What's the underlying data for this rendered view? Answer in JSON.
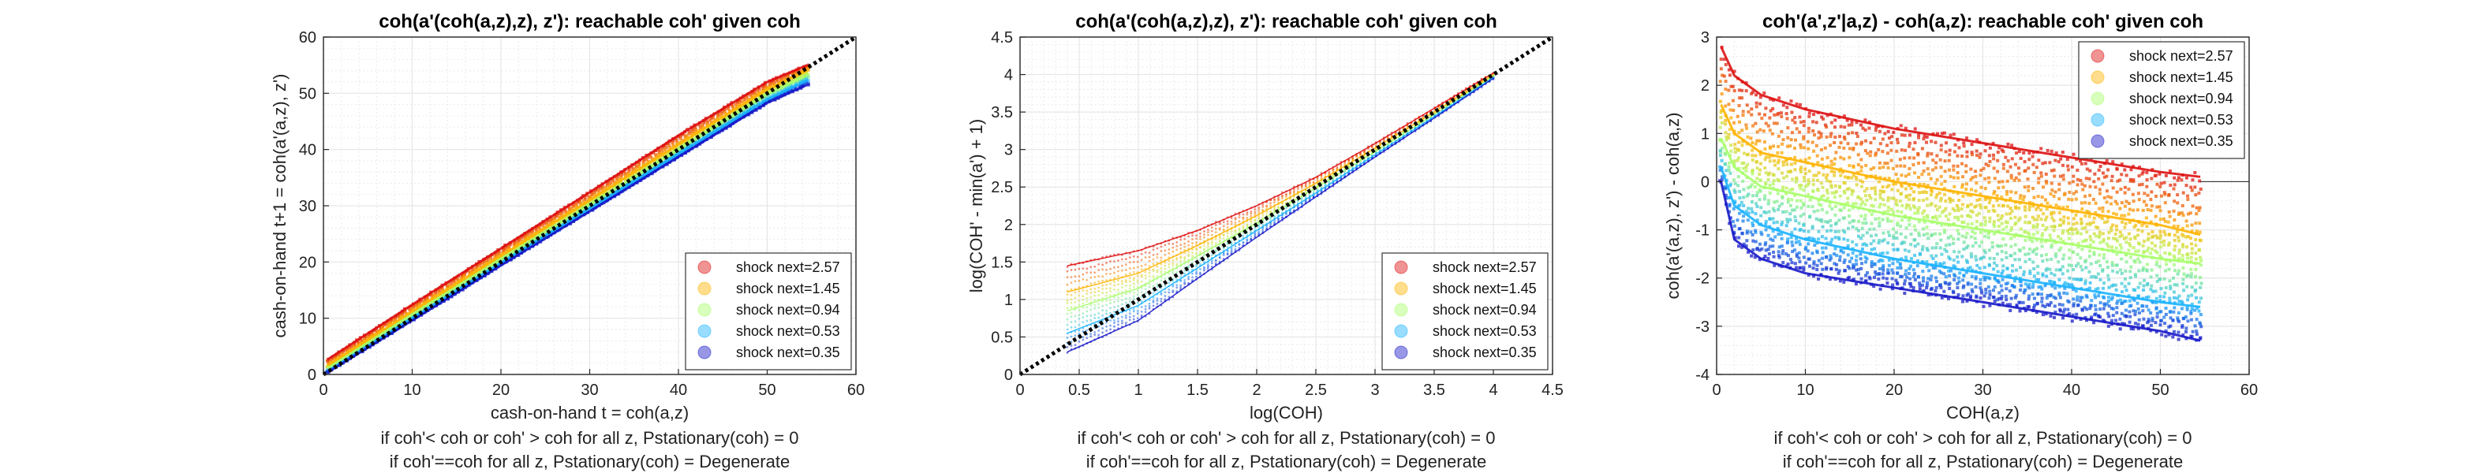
{
  "figure": {
    "caption_line1": "if coh'< coh or coh' > coh for all z, Pstationary(coh) = 0",
    "caption_line2": "if coh'==coh for all z, Pstationary(coh) = Degenerate"
  },
  "colors": {
    "shock_2_57": "#dd1010",
    "shock_1_45": "#ffb400",
    "shock_0_94": "#a8ff6a",
    "shock_0_53": "#1ab3ff",
    "shock_0_35": "#1818c8",
    "grid": "#e6e6e6",
    "axis": "#262626",
    "reference_line": "#000000"
  },
  "chart_data": [
    {
      "type": "scatter",
      "title": "coh(a'(coh(a,z),z), z'): reachable coh' given coh",
      "xlabel": "cash-on-hand t = coh(a,z)",
      "ylabel": "cash-on-hand t+1 = coh(a'(a,z), z')",
      "xlim": [
        0,
        60
      ],
      "ylim": [
        0,
        60
      ],
      "xticks": [
        "0",
        "10",
        "20",
        "30",
        "40",
        "50",
        "60"
      ],
      "yticks": [
        "0",
        "10",
        "20",
        "30",
        "40",
        "50",
        "60"
      ],
      "grid": true,
      "minor_grid": true,
      "legend_position": "bottom-right",
      "reference_line": "45-degree dotted black line y = x",
      "series": [
        {
          "name": "shock next=2.57",
          "x": [
            0.5,
            10,
            20,
            30,
            40,
            50,
            54.5
          ],
          "y": [
            2.7,
            12.4,
            22.4,
            32.4,
            42.5,
            52.0,
            55.0
          ]
        },
        {
          "name": "shock next=1.45",
          "x": [
            0.5,
            10,
            20,
            30,
            40,
            50,
            54.5
          ],
          "y": [
            1.6,
            11.2,
            21.1,
            31.0,
            40.9,
            50.7,
            54.1
          ]
        },
        {
          "name": "shock next=0.94",
          "x": [
            0.5,
            10,
            20,
            30,
            40,
            50,
            54.5
          ],
          "y": [
            1.1,
            10.6,
            20.4,
            30.2,
            40.0,
            49.8,
            53.2
          ]
        },
        {
          "name": "shock next=0.53",
          "x": [
            0.5,
            10,
            20,
            30,
            40,
            50,
            54.5
          ],
          "y": [
            0.6,
            10.0,
            19.8,
            29.5,
            39.2,
            48.9,
            52.3
          ]
        },
        {
          "name": "shock next=0.35",
          "x": [
            0.5,
            10,
            20,
            30,
            40,
            50,
            54.5
          ],
          "y": [
            0.4,
            9.6,
            19.4,
            29.0,
            38.7,
            48.3,
            51.5
          ]
        }
      ]
    },
    {
      "type": "scatter",
      "title": "coh(a'(coh(a,z),z), z'): reachable coh' given coh",
      "xlabel": "log(COH)",
      "ylabel": "log(COH' - min(a') + 1)",
      "xlim": [
        0,
        4.5
      ],
      "ylim": [
        0,
        4.5
      ],
      "xticks": [
        "0",
        "0.5",
        "1",
        "1.5",
        "2",
        "2.5",
        "3",
        "3.5",
        "4",
        "4.5"
      ],
      "yticks": [
        "0",
        "0.5",
        "1",
        "1.5",
        "2",
        "2.5",
        "3",
        "3.5",
        "4",
        "4.5"
      ],
      "grid": true,
      "minor_grid": true,
      "legend_position": "bottom-right",
      "reference_line": "45-degree dotted black line y = x",
      "series": [
        {
          "name": "shock next=2.57",
          "x": [
            0.4,
            1.0,
            1.5,
            2.0,
            2.5,
            3.0,
            3.5,
            4.0
          ],
          "y": [
            1.45,
            1.65,
            1.92,
            2.25,
            2.63,
            3.08,
            3.55,
            4.02
          ]
        },
        {
          "name": "shock next=1.45",
          "x": [
            0.4,
            1.0,
            1.5,
            2.0,
            2.5,
            3.0,
            3.5,
            4.0
          ],
          "y": [
            1.1,
            1.35,
            1.72,
            2.12,
            2.55,
            3.02,
            3.5,
            4.0
          ]
        },
        {
          "name": "shock next=0.94",
          "x": [
            0.4,
            1.0,
            1.5,
            2.0,
            2.5,
            3.0,
            3.5,
            4.0
          ],
          "y": [
            0.85,
            1.15,
            1.58,
            2.02,
            2.49,
            2.97,
            3.47,
            3.98
          ]
        },
        {
          "name": "shock next=0.53",
          "x": [
            0.4,
            1.0,
            1.5,
            2.0,
            2.5,
            3.0,
            3.5,
            4.0
          ],
          "y": [
            0.55,
            0.92,
            1.42,
            1.92,
            2.42,
            2.93,
            3.44,
            3.96
          ]
        },
        {
          "name": "shock next=0.35",
          "x": [
            0.4,
            1.0,
            1.5,
            2.0,
            2.5,
            3.0,
            3.5,
            4.0
          ],
          "y": [
            0.3,
            0.72,
            1.28,
            1.83,
            2.37,
            2.9,
            3.42,
            3.95
          ]
        }
      ]
    },
    {
      "type": "scatter",
      "title": "coh'(a',z'|a,z) - coh(a,z): reachable coh' given coh",
      "xlabel": "COH(a,z)",
      "ylabel": "coh(a'(a,z), z') - coh(a,z)",
      "xlim": [
        0,
        60
      ],
      "ylim": [
        -4,
        3
      ],
      "xticks": [
        "0",
        "10",
        "20",
        "30",
        "40",
        "50",
        "60"
      ],
      "yticks": [
        "-4",
        "-3",
        "-2",
        "-1",
        "0",
        "1",
        "2",
        "3"
      ],
      "grid": true,
      "minor_grid": true,
      "legend_position": "top-right",
      "reference_line": "horizontal line y = 0",
      "series": [
        {
          "name": "shock next=2.57",
          "x": [
            0.5,
            2,
            5,
            10,
            20,
            30,
            40,
            50,
            54.5
          ],
          "y": [
            2.8,
            2.2,
            1.8,
            1.5,
            1.1,
            0.8,
            0.5,
            0.2,
            0.1
          ]
        },
        {
          "name": "shock next=1.45",
          "x": [
            0.5,
            2,
            5,
            10,
            20,
            30,
            40,
            50,
            54.5
          ],
          "y": [
            1.6,
            1.0,
            0.6,
            0.4,
            0.0,
            -0.3,
            -0.6,
            -0.9,
            -1.1
          ]
        },
        {
          "name": "shock next=0.94",
          "x": [
            0.5,
            2,
            5,
            10,
            20,
            30,
            40,
            50,
            54.5
          ],
          "y": [
            0.9,
            0.3,
            -0.1,
            -0.3,
            -0.7,
            -1.0,
            -1.3,
            -1.6,
            -1.7
          ]
        },
        {
          "name": "shock next=0.53",
          "x": [
            0.5,
            2,
            5,
            10,
            20,
            30,
            40,
            50,
            54.5
          ],
          "y": [
            0.3,
            -0.5,
            -0.9,
            -1.2,
            -1.6,
            -1.9,
            -2.2,
            -2.5,
            -2.6
          ]
        },
        {
          "name": "shock next=0.35",
          "x": [
            0.5,
            2,
            5,
            10,
            20,
            30,
            40,
            50,
            54.5
          ],
          "y": [
            0.0,
            -1.2,
            -1.6,
            -1.9,
            -2.2,
            -2.5,
            -2.8,
            -3.1,
            -3.3
          ]
        }
      ]
    }
  ]
}
